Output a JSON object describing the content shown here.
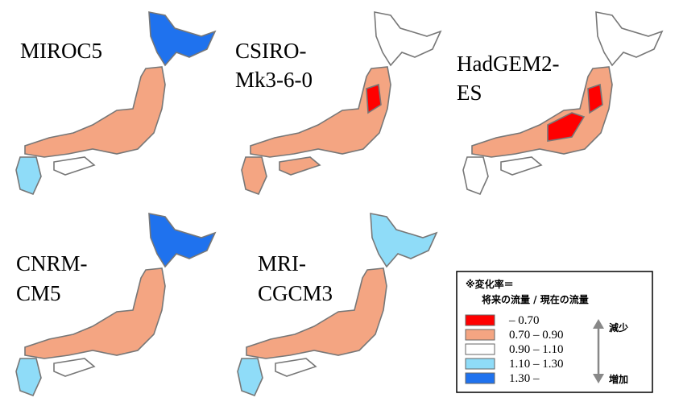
{
  "panels": [
    {
      "label_lines": [
        "MIROC5"
      ]
    },
    {
      "label_lines": [
        "CSIRO-",
        "Mk3-6-0"
      ]
    },
    {
      "label_lines": [
        "HadGEM2-",
        "ES"
      ]
    },
    {
      "label_lines": [
        "CNRM-",
        "CM5"
      ]
    },
    {
      "label_lines": [
        "MRI-",
        "CGCM3"
      ]
    }
  ],
  "legend": {
    "title": "※変化率＝",
    "formula": "将来の流量 / 現在の流量",
    "items": [
      {
        "label": "– 0.70",
        "color": "#ff0000"
      },
      {
        "label": "0.70 – 0.90",
        "color": "#f4a582"
      },
      {
        "label": "0.90 – 1.10",
        "color": "#ffffff"
      },
      {
        "label": "1.10 – 1.30",
        "color": "#8fdcf8"
      },
      {
        "label": "1.30 –",
        "color": "#1f72ee"
      }
    ],
    "decrease": "減少",
    "increase": "増加"
  }
}
